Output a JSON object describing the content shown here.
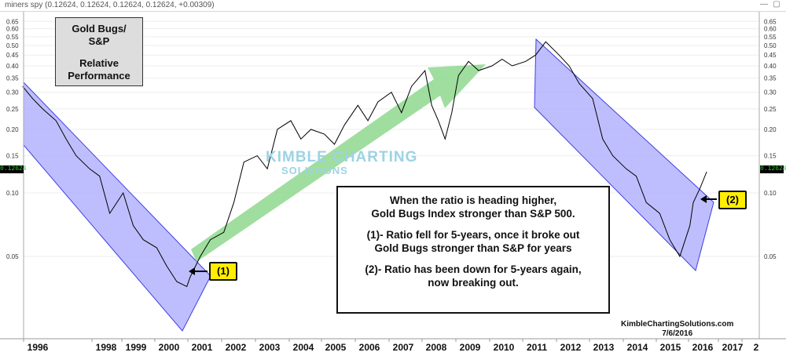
{
  "header": {
    "ticker": "miners spy",
    "quote": "(0.12624, 0.12624, 0.12624, 0.12624, +0.00309)",
    "last_value": "0.12624"
  },
  "title_box": {
    "line1": "Gold Bugs/",
    "line2": "S&P",
    "line3": "Relative",
    "line4": "Performance"
  },
  "watermark": {
    "line1": "KIMBLE CHARTING",
    "line2": "SOLUTIONS"
  },
  "note": {
    "line1": "When the ratio is heading higher,",
    "line2": "Gold Bugs Index stronger than S&P 500.",
    "line3": "(1)- Ratio fell for 5-years, once it broke out",
    "line4": "Gold Bugs stronger than S&P for years",
    "line5": "(2)- Ratio has been down for 5-years again,",
    "line6": "now breaking out."
  },
  "callouts": {
    "one": "(1)",
    "two": "(2)"
  },
  "credit": {
    "site": "KimbleChartingSolutions.com",
    "date": "7/6/2016"
  },
  "colors": {
    "channel_fill": "#a8a8ff",
    "channel_edge": "#4040e0",
    "arrow_fill": "#8ed88e",
    "line": "#000000",
    "callout": "#ffee00"
  },
  "chart_data": {
    "type": "line",
    "scale": "log",
    "y_ticks": [
      0.05,
      0.1,
      0.15,
      0.2,
      0.25,
      0.3,
      0.35,
      0.4,
      0.45,
      0.5,
      0.55,
      0.6,
      0.65
    ],
    "y_tick_labels": [
      "0.05",
      "0.10",
      "0.15",
      "0.20",
      "0.25",
      "0.30",
      "0.35",
      "0.40",
      "0.45",
      "0.50",
      "0.55",
      "0.60",
      "0.65"
    ],
    "x_labels": [
      "1996",
      "1998",
      "1999",
      "2000",
      "2001",
      "2002",
      "2003",
      "2004",
      "2005",
      "2006",
      "2007",
      "2008",
      "2009",
      "2010",
      "2011",
      "2012",
      "2013",
      "2014",
      "2015",
      "2016",
      "2017",
      "2"
    ],
    "series": [
      {
        "x": [
          1996.0,
          1996.3,
          1996.6,
          1997.0,
          1997.3,
          1997.6,
          1998.0,
          1998.3,
          1998.6,
          1999.0,
          1999.3,
          1999.6,
          2000.0,
          2000.3,
          2000.6,
          2000.9,
          2001.0,
          2001.3,
          2001.6,
          2002.0,
          2002.3,
          2002.6,
          2003.0,
          2003.3,
          2003.6,
          2004.0,
          2004.3,
          2004.6,
          2005.0,
          2005.3,
          2005.6,
          2006.0,
          2006.3,
          2006.6,
          2007.0,
          2007.3,
          2007.6,
          2008.0,
          2008.2,
          2008.4,
          2008.6,
          2008.8,
          2009.0,
          2009.3,
          2009.6,
          2010.0,
          2010.3,
          2010.6,
          2011.0,
          2011.3,
          2011.6,
          2012.0,
          2012.3,
          2012.6,
          2013.0,
          2013.3,
          2013.6,
          2014.0,
          2014.3,
          2014.6,
          2015.0,
          2015.3,
          2015.6,
          2015.9,
          2016.0,
          2016.2,
          2016.4
        ],
        "y": [
          0.32,
          0.28,
          0.25,
          0.22,
          0.18,
          0.15,
          0.13,
          0.12,
          0.08,
          0.1,
          0.07,
          0.06,
          0.055,
          0.045,
          0.038,
          0.036,
          0.04,
          0.05,
          0.06,
          0.065,
          0.09,
          0.14,
          0.15,
          0.13,
          0.2,
          0.22,
          0.18,
          0.2,
          0.19,
          0.17,
          0.21,
          0.26,
          0.22,
          0.27,
          0.3,
          0.24,
          0.32,
          0.38,
          0.26,
          0.22,
          0.18,
          0.24,
          0.36,
          0.42,
          0.38,
          0.4,
          0.43,
          0.4,
          0.42,
          0.45,
          0.52,
          0.45,
          0.4,
          0.33,
          0.28,
          0.18,
          0.15,
          0.13,
          0.12,
          0.09,
          0.08,
          0.06,
          0.05,
          0.07,
          0.09,
          0.105,
          0.126
        ]
      }
    ]
  }
}
